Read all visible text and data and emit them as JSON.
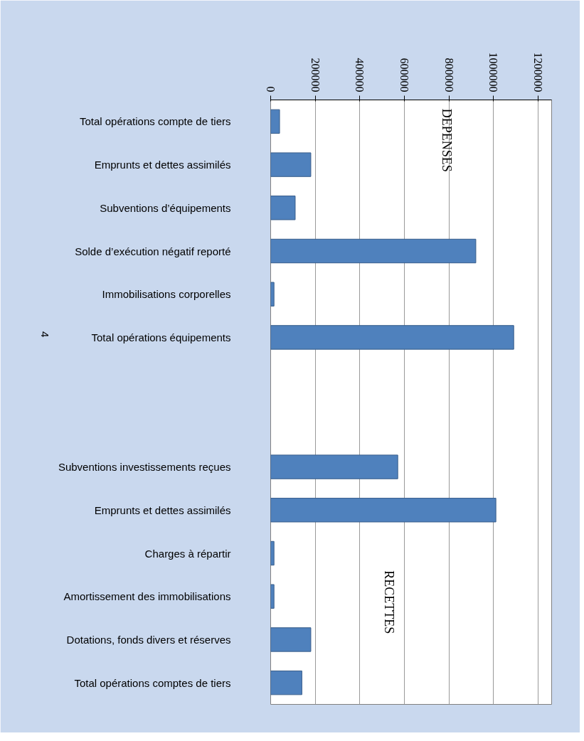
{
  "chart_data": {
    "type": "bar",
    "orientation": "horizontal",
    "categories": [
      "Total opérations compte de tiers",
      "Emprunts et dettes assimilés",
      "Subventions d’équipements",
      "Solde d’exécution négatif reporté",
      "Immobilisations corporelles",
      "Total opérations équipements",
      null,
      null,
      "Subventions investissements reçues",
      "Emprunts et dettes assimilés",
      "Charges à répartir",
      "Amortissement des immobilisations",
      "Dotations, fonds divers et réserves",
      "Total opérations comptes de tiers"
    ],
    "values": [
      40000,
      180000,
      110000,
      920000,
      15000,
      1090000,
      null,
      null,
      570000,
      1010000,
      15000,
      15000,
      180000,
      140000
    ],
    "color": "#4f81bd",
    "xlim": [
      0,
      1260000
    ],
    "xticks": [
      0,
      200000,
      400000,
      600000,
      800000,
      1000000,
      1200000
    ],
    "grid": "x",
    "annotations": [
      "DEPENSES",
      "RECETTES",
      "4"
    ]
  }
}
